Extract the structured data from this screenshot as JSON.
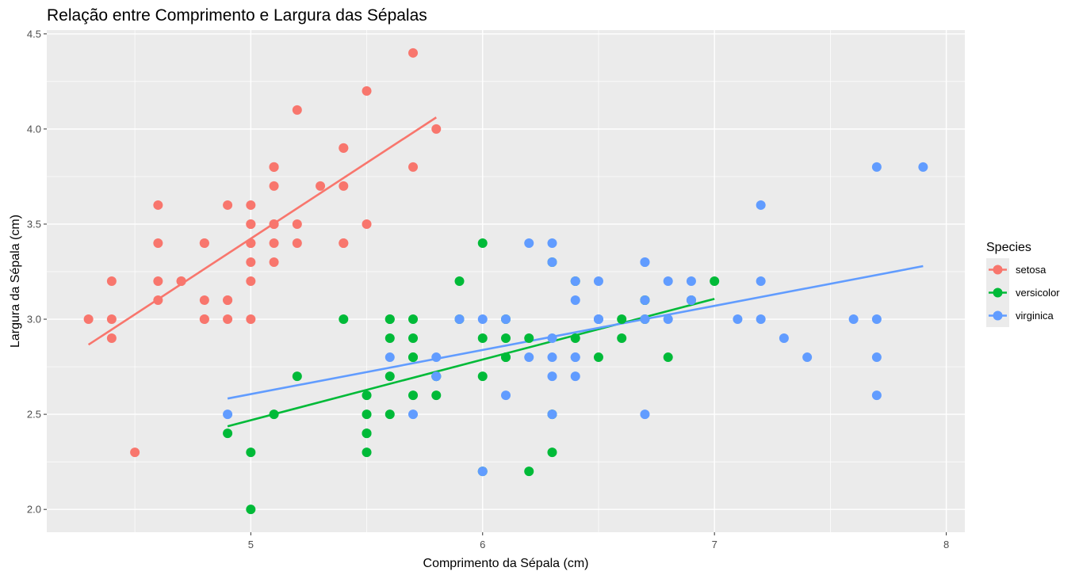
{
  "chart_data": {
    "type": "scatter",
    "title": "Relação entre Comprimento e Largura das Sépalas",
    "xlabel": "Comprimento da Sépala (cm)",
    "ylabel": "Largura da Sépala (cm)",
    "xlim": [
      4.12,
      8.08
    ],
    "ylim": [
      1.88,
      4.52
    ],
    "x_ticks": [
      5,
      6,
      7,
      8
    ],
    "x_tick_labels": [
      "5",
      "6",
      "7",
      "8"
    ],
    "y_ticks": [
      2.0,
      2.5,
      3.0,
      3.5,
      4.0,
      4.5
    ],
    "y_tick_labels": [
      "2.0",
      "2.5",
      "3.0",
      "3.5",
      "4.0",
      "4.5"
    ],
    "grid": true,
    "legend": {
      "title": "Species",
      "position": "right"
    },
    "series": [
      {
        "name": "setosa",
        "color": "#F8766D",
        "points": [
          [
            5.1,
            3.5
          ],
          [
            4.9,
            3.0
          ],
          [
            4.7,
            3.2
          ],
          [
            4.6,
            3.1
          ],
          [
            5.0,
            3.6
          ],
          [
            5.4,
            3.9
          ],
          [
            4.6,
            3.4
          ],
          [
            5.0,
            3.4
          ],
          [
            4.4,
            2.9
          ],
          [
            4.9,
            3.1
          ],
          [
            5.4,
            3.7
          ],
          [
            4.8,
            3.4
          ],
          [
            4.8,
            3.0
          ],
          [
            4.3,
            3.0
          ],
          [
            5.8,
            4.0
          ],
          [
            5.7,
            4.4
          ],
          [
            5.4,
            3.9
          ],
          [
            5.1,
            3.5
          ],
          [
            5.7,
            3.8
          ],
          [
            5.1,
            3.8
          ],
          [
            5.4,
            3.4
          ],
          [
            5.1,
            3.7
          ],
          [
            4.6,
            3.6
          ],
          [
            5.1,
            3.3
          ],
          [
            4.8,
            3.4
          ],
          [
            5.0,
            3.0
          ],
          [
            5.0,
            3.4
          ],
          [
            5.2,
            3.5
          ],
          [
            5.2,
            3.4
          ],
          [
            4.7,
            3.2
          ],
          [
            4.8,
            3.1
          ],
          [
            5.4,
            3.4
          ],
          [
            5.2,
            4.1
          ],
          [
            5.5,
            4.2
          ],
          [
            4.9,
            3.1
          ],
          [
            5.0,
            3.2
          ],
          [
            5.5,
            3.5
          ],
          [
            4.9,
            3.6
          ],
          [
            4.4,
            3.0
          ],
          [
            5.1,
            3.4
          ],
          [
            5.0,
            3.5
          ],
          [
            4.5,
            2.3
          ],
          [
            4.4,
            3.2
          ],
          [
            5.0,
            3.5
          ],
          [
            5.1,
            3.8
          ],
          [
            4.8,
            3.0
          ],
          [
            5.1,
            3.8
          ],
          [
            4.6,
            3.2
          ],
          [
            5.3,
            3.7
          ],
          [
            5.0,
            3.3
          ]
        ],
        "fit": {
          "x": [
            4.3,
            5.8
          ],
          "y": [
            2.866,
            4.061
          ]
        }
      },
      {
        "name": "versicolor",
        "color": "#00BA38",
        "points": [
          [
            7.0,
            3.2
          ],
          [
            6.4,
            3.2
          ],
          [
            6.9,
            3.1
          ],
          [
            5.5,
            2.3
          ],
          [
            6.5,
            2.8
          ],
          [
            5.7,
            2.8
          ],
          [
            6.3,
            3.3
          ],
          [
            4.9,
            2.4
          ],
          [
            6.6,
            2.9
          ],
          [
            5.2,
            2.7
          ],
          [
            5.0,
            2.0
          ],
          [
            5.9,
            3.0
          ],
          [
            6.0,
            2.2
          ],
          [
            6.1,
            2.9
          ],
          [
            5.6,
            2.9
          ],
          [
            6.7,
            3.1
          ],
          [
            5.6,
            3.0
          ],
          [
            5.8,
            2.7
          ],
          [
            6.2,
            2.2
          ],
          [
            5.6,
            2.5
          ],
          [
            5.9,
            3.2
          ],
          [
            6.1,
            2.8
          ],
          [
            6.3,
            2.5
          ],
          [
            6.1,
            2.8
          ],
          [
            6.4,
            2.9
          ],
          [
            6.6,
            3.0
          ],
          [
            6.8,
            2.8
          ],
          [
            6.7,
            3.0
          ],
          [
            6.0,
            2.9
          ],
          [
            5.7,
            2.6
          ],
          [
            5.5,
            2.4
          ],
          [
            5.5,
            2.4
          ],
          [
            5.8,
            2.7
          ],
          [
            6.0,
            2.7
          ],
          [
            5.4,
            3.0
          ],
          [
            6.0,
            3.4
          ],
          [
            6.7,
            3.1
          ],
          [
            6.3,
            2.3
          ],
          [
            5.6,
            3.0
          ],
          [
            5.5,
            2.5
          ],
          [
            5.5,
            2.6
          ],
          [
            6.1,
            3.0
          ],
          [
            5.8,
            2.6
          ],
          [
            5.0,
            2.3
          ],
          [
            5.6,
            2.7
          ],
          [
            5.7,
            3.0
          ],
          [
            5.7,
            2.9
          ],
          [
            6.2,
            2.9
          ],
          [
            5.1,
            2.5
          ],
          [
            5.7,
            2.8
          ]
        ],
        "fit": {
          "x": [
            4.9,
            7.0
          ],
          "y": [
            2.437,
            3.107
          ]
        }
      },
      {
        "name": "virginica",
        "color": "#619CFF",
        "points": [
          [
            6.3,
            3.3
          ],
          [
            5.8,
            2.7
          ],
          [
            7.1,
            3.0
          ],
          [
            6.3,
            2.9
          ],
          [
            6.5,
            3.0
          ],
          [
            7.6,
            3.0
          ],
          [
            4.9,
            2.5
          ],
          [
            7.3,
            2.9
          ],
          [
            6.7,
            2.5
          ],
          [
            7.2,
            3.6
          ],
          [
            6.5,
            3.2
          ],
          [
            6.4,
            2.7
          ],
          [
            6.8,
            3.0
          ],
          [
            5.7,
            2.5
          ],
          [
            5.8,
            2.8
          ],
          [
            6.4,
            3.2
          ],
          [
            6.5,
            3.0
          ],
          [
            7.7,
            3.8
          ],
          [
            7.7,
            2.6
          ],
          [
            6.0,
            2.2
          ],
          [
            6.9,
            3.2
          ],
          [
            5.6,
            2.8
          ],
          [
            7.7,
            2.8
          ],
          [
            6.3,
            2.7
          ],
          [
            6.7,
            3.3
          ],
          [
            7.2,
            3.2
          ],
          [
            6.2,
            2.8
          ],
          [
            6.1,
            3.0
          ],
          [
            6.4,
            2.8
          ],
          [
            7.2,
            3.0
          ],
          [
            7.4,
            2.8
          ],
          [
            7.9,
            3.8
          ],
          [
            6.4,
            2.8
          ],
          [
            6.3,
            2.8
          ],
          [
            6.1,
            2.6
          ],
          [
            7.7,
            3.0
          ],
          [
            6.3,
            3.4
          ],
          [
            6.4,
            3.1
          ],
          [
            6.0,
            3.0
          ],
          [
            6.9,
            3.1
          ],
          [
            6.7,
            3.1
          ],
          [
            6.9,
            3.1
          ],
          [
            5.8,
            2.7
          ],
          [
            6.8,
            3.2
          ],
          [
            6.7,
            3.3
          ],
          [
            6.7,
            3.0
          ],
          [
            6.3,
            2.5
          ],
          [
            6.5,
            3.0
          ],
          [
            6.2,
            3.4
          ],
          [
            5.9,
            3.0
          ]
        ],
        "fit": {
          "x": [
            4.9,
            7.9
          ],
          "y": [
            2.583,
            3.279
          ]
        }
      }
    ]
  }
}
